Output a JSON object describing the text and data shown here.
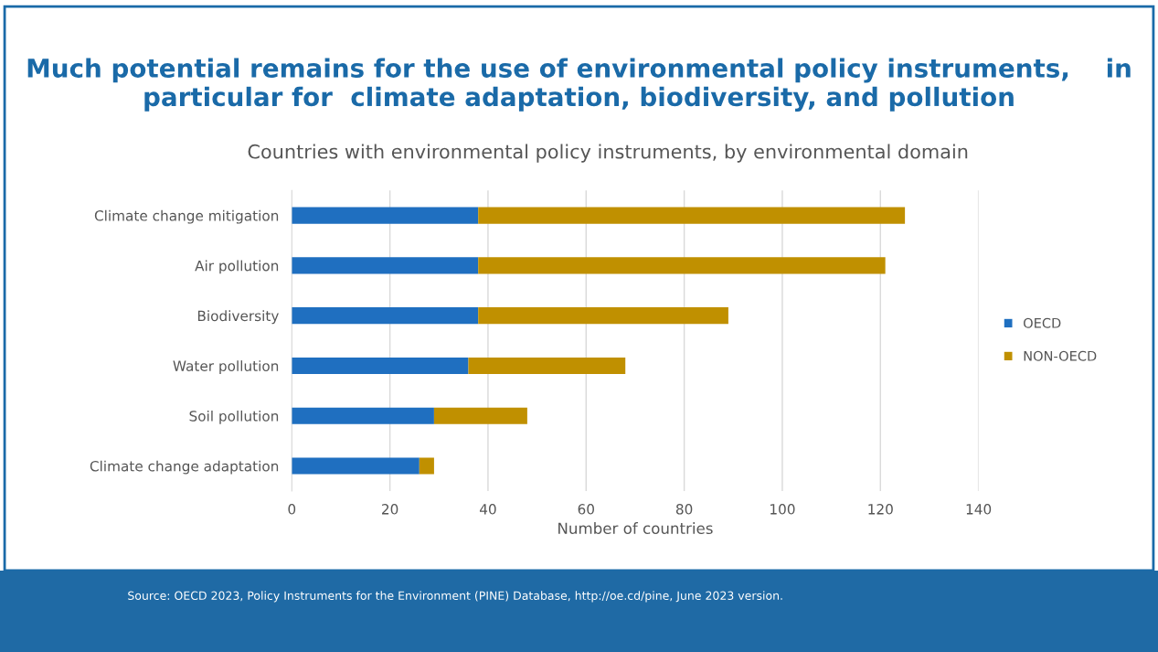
{
  "chart_data": {
    "type": "bar",
    "orientation": "horizontal",
    "stacked": true,
    "title": "Much potential remains for the use of environmental policy instruments,    in particular for  climate adaptation, biodiversity, and pollution",
    "subtitle": "Countries with environmental policy instruments, by environmental domain",
    "xlabel": "Number of countries",
    "categories": [
      "Climate change mitigation",
      "Air pollution",
      "Biodiversity",
      "Water pollution",
      "Soil pollution",
      "Climate change adaptation"
    ],
    "series": [
      {
        "name": "OECD",
        "color": "#1f6fc0",
        "values": [
          38,
          38,
          38,
          36,
          29,
          26
        ]
      },
      {
        "name": "NON-OECD",
        "color": "#c09000",
        "values": [
          87,
          83,
          51,
          32,
          19,
          3
        ]
      }
    ],
    "xlim": [
      0,
      140
    ],
    "xticks": [
      0,
      20,
      40,
      60,
      80,
      100,
      120,
      140
    ],
    "grid": "x",
    "legend": "right",
    "annotations": [
      "Source: OECD 2023, Policy Instruments for the Environment (PINE) Database, http://oe.cd/pine, June 2023 version."
    ]
  }
}
